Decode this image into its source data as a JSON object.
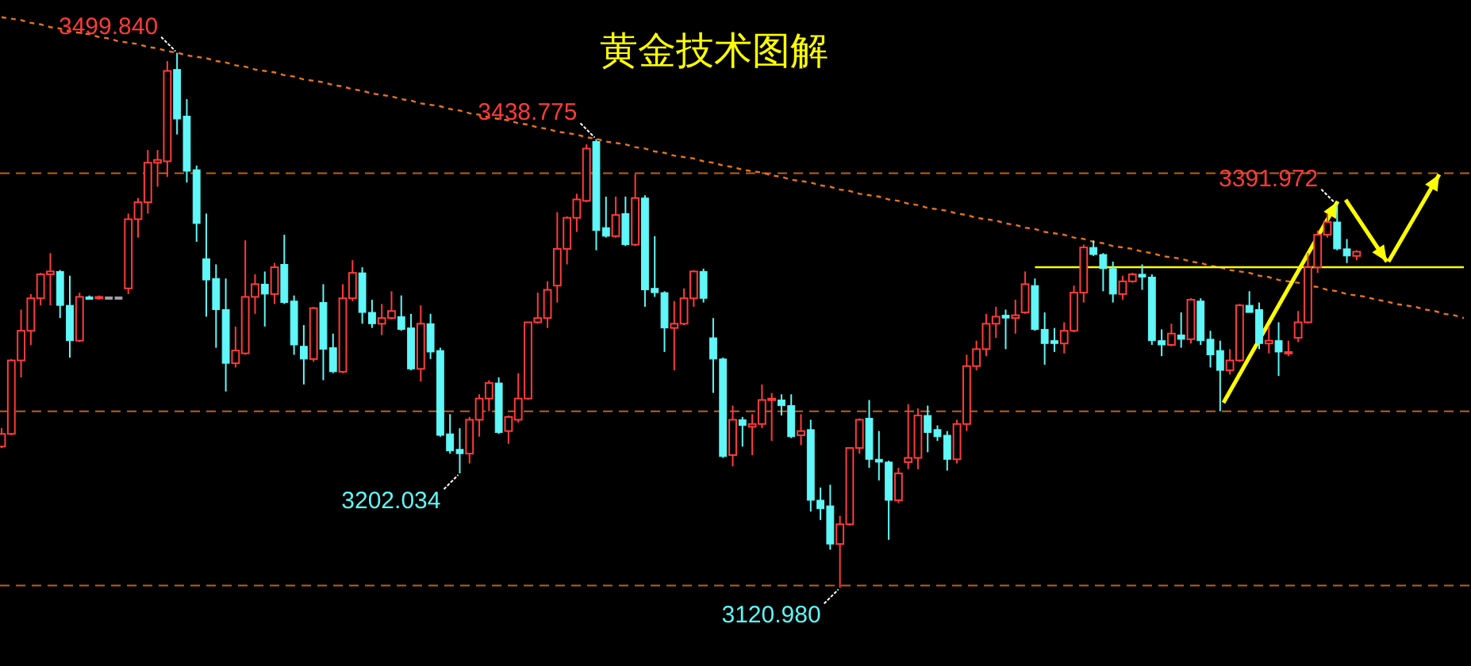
{
  "chart_data": {
    "type": "candlestick",
    "title": "黄金技术图解",
    "categories": [
      null,
      null,
      null,
      null,
      null,
      null,
      null,
      null,
      null,
      null,
      null,
      null,
      null,
      null,
      null,
      null,
      null,
      null,
      null,
      null,
      null,
      null,
      null,
      null,
      null,
      null,
      null,
      null,
      null,
      null,
      null,
      null,
      null,
      null,
      null,
      null,
      null,
      null,
      null,
      null,
      null,
      null,
      null,
      null,
      null,
      null,
      null,
      null,
      null,
      null,
      null,
      null,
      null,
      null,
      null,
      null,
      null,
      null,
      null,
      null,
      null,
      null,
      null,
      null,
      null,
      null,
      null,
      null,
      null,
      null,
      null,
      null,
      null,
      null,
      null,
      null,
      null,
      null,
      null,
      null,
      null,
      null,
      null,
      null,
      null,
      null,
      null,
      null,
      null,
      null,
      null,
      null,
      null,
      null,
      null,
      null,
      null,
      null,
      null,
      null,
      null,
      null,
      null,
      null,
      null,
      null,
      null,
      null,
      null,
      null,
      null,
      null,
      null,
      null,
      null,
      null,
      null,
      null,
      null,
      null,
      null,
      null,
      null,
      null,
      null,
      null,
      null,
      null,
      null,
      null,
      null,
      null,
      null,
      null,
      null,
      null,
      null,
      null,
      null,
      null,
      null,
      null,
      null,
      null,
      null,
      null,
      null,
      null,
      null,
      null,
      null
    ],
    "ohlc": [
      [
        3221,
        3234,
        3220,
        3230
      ],
      [
        3230,
        3283,
        3229,
        3282
      ],
      [
        3282,
        3318,
        3270,
        3303
      ],
      [
        3303,
        3329,
        3293,
        3326
      ],
      [
        3326,
        3344,
        3321,
        3343
      ],
      [
        3343,
        3358,
        3321,
        3345
      ],
      [
        3345,
        3346,
        3312,
        3321
      ],
      [
        3321,
        3342,
        3284,
        3296
      ],
      [
        3296,
        3330,
        3295,
        3327
      ],
      [
        3327,
        3328,
        3325,
        3326
      ],
      [
        3326,
        3328,
        3325,
        3327
      ],
      [
        3327,
        3327,
        3327,
        3327
      ],
      [
        3327,
        3327,
        3327,
        3327
      ],
      [
        3333,
        3386,
        3329,
        3382
      ],
      [
        3382,
        3397,
        3369,
        3394
      ],
      [
        3394,
        3431,
        3386,
        3422
      ],
      [
        3422,
        3431,
        3405,
        3424
      ],
      [
        3423,
        3494,
        3412,
        3487
      ],
      [
        3488,
        3499.84,
        3442,
        3453
      ],
      [
        3455,
        3467,
        3408,
        3416
      ],
      [
        3417,
        3420,
        3366,
        3379
      ],
      [
        3354,
        3386,
        3313,
        3339
      ],
      [
        3340,
        3350,
        3291,
        3318
      ],
      [
        3318,
        3340,
        3260,
        3280
      ],
      [
        3280,
        3306,
        3277,
        3289
      ],
      [
        3287,
        3367,
        3286,
        3327
      ],
      [
        3327,
        3343,
        3315,
        3336
      ],
      [
        3336,
        3345,
        3306,
        3329
      ],
      [
        3329,
        3351,
        3322,
        3348
      ],
      [
        3350,
        3371,
        3322,
        3323
      ],
      [
        3324,
        3328,
        3286,
        3293
      ],
      [
        3292,
        3307,
        3265,
        3283
      ],
      [
        3283,
        3320,
        3281,
        3319
      ],
      [
        3323,
        3336,
        3268,
        3290
      ],
      [
        3291,
        3301,
        3273,
        3274
      ],
      [
        3274,
        3336,
        3273,
        3326
      ],
      [
        3326,
        3353,
        3324,
        3344
      ],
      [
        3344,
        3348,
        3308,
        3316
      ],
      [
        3316,
        3325,
        3305,
        3308
      ],
      [
        3308,
        3322,
        3300,
        3312
      ],
      [
        3312,
        3331,
        3311,
        3317
      ],
      [
        3313,
        3328,
        3303,
        3304
      ],
      [
        3305,
        3315,
        3275,
        3276
      ],
      [
        3276,
        3321,
        3267,
        3308
      ],
      [
        3308,
        3315,
        3283,
        3288
      ],
      [
        3289,
        3291,
        3228,
        3229
      ],
      [
        3230,
        3244,
        3216,
        3218
      ],
      [
        3219,
        3234,
        3202.034,
        3216
      ],
      [
        3216,
        3242,
        3209,
        3240
      ],
      [
        3240,
        3258,
        3228,
        3255
      ],
      [
        3255,
        3268,
        3246,
        3266
      ],
      [
        3266,
        3270,
        3230,
        3231
      ],
      [
        3232,
        3243,
        3223,
        3242
      ],
      [
        3240,
        3273,
        3238,
        3255
      ],
      [
        3255,
        3309,
        3254,
        3309
      ],
      [
        3309,
        3330,
        3308,
        3312
      ],
      [
        3312,
        3338,
        3305,
        3332
      ],
      [
        3335,
        3387,
        3323,
        3361
      ],
      [
        3361,
        3384,
        3350,
        3383
      ],
      [
        3383,
        3400,
        3373,
        3396
      ],
      [
        3395,
        3435,
        3394,
        3432
      ],
      [
        3437,
        3438.775,
        3360,
        3374
      ],
      [
        3376,
        3398,
        3369,
        3370
      ],
      [
        3370,
        3398,
        3369,
        3385
      ],
      [
        3386,
        3398,
        3363,
        3364
      ],
      [
        3364,
        3414,
        3363,
        3397
      ],
      [
        3397,
        3399,
        3320,
        3332
      ],
      [
        3333,
        3370,
        3327,
        3330
      ],
      [
        3330,
        3331,
        3288,
        3305
      ],
      [
        3305,
        3324,
        3275,
        3308
      ],
      [
        3308,
        3333,
        3307,
        3326
      ],
      [
        3326,
        3346,
        3320,
        3345
      ],
      [
        3345,
        3347,
        3323,
        3326
      ],
      [
        3298,
        3312,
        3259,
        3283
      ],
      [
        3283,
        3284,
        3213,
        3214
      ],
      [
        3215,
        3250,
        3207,
        3240
      ],
      [
        3240,
        3242,
        3221,
        3236
      ],
      [
        3235,
        3244,
        3215,
        3237
      ],
      [
        3237,
        3265,
        3234,
        3254
      ],
      [
        3254,
        3259,
        3225,
        3255
      ],
      [
        3254,
        3258,
        3243,
        3250
      ],
      [
        3250,
        3258,
        3227,
        3228
      ],
      [
        3229,
        3244,
        3222,
        3232
      ],
      [
        3233,
        3240,
        3175,
        3183
      ],
      [
        3183,
        3192,
        3169,
        3177
      ],
      [
        3179,
        3194,
        3148,
        3152
      ],
      [
        3152,
        3172,
        3120.98,
        3166
      ],
      [
        3166,
        3220,
        3165,
        3220
      ],
      [
        3220,
        3241,
        3216,
        3240
      ],
      [
        3241,
        3254,
        3206,
        3212
      ],
      [
        3212,
        3232,
        3197,
        3210
      ],
      [
        3210,
        3211,
        3155,
        3183
      ],
      [
        3183,
        3206,
        3181,
        3202
      ],
      [
        3210,
        3251,
        3205,
        3213
      ],
      [
        3213,
        3248,
        3205,
        3243
      ],
      [
        3243,
        3250,
        3217,
        3231
      ],
      [
        3233,
        3236,
        3225,
        3228
      ],
      [
        3229,
        3232,
        3204,
        3212
      ],
      [
        3212,
        3240,
        3209,
        3237
      ],
      [
        3237,
        3286,
        3232,
        3278
      ],
      [
        3278,
        3296,
        3275,
        3290
      ],
      [
        3290,
        3315,
        3285,
        3308
      ],
      [
        3308,
        3320,
        3298,
        3313
      ],
      [
        3314,
        3318,
        3290,
        3312
      ],
      [
        3312,
        3325,
        3301,
        3314
      ],
      [
        3316,
        3345,
        3315,
        3336
      ],
      [
        3335,
        3340,
        3303,
        3304
      ],
      [
        3304,
        3316,
        3279,
        3294
      ],
      [
        3296,
        3305,
        3288,
        3294
      ],
      [
        3294,
        3309,
        3287,
        3303
      ],
      [
        3303,
        3335,
        3302,
        3330
      ],
      [
        3330,
        3364,
        3323,
        3362
      ],
      [
        3362,
        3367,
        3356,
        3357
      ],
      [
        3357,
        3358,
        3331,
        3347
      ],
      [
        3347,
        3352,
        3323,
        3329
      ],
      [
        3329,
        3342,
        3325,
        3338
      ],
      [
        3338,
        3344,
        3337,
        3343
      ],
      [
        3343,
        3350,
        3332,
        3341
      ],
      [
        3341,
        3343,
        3293,
        3296
      ],
      [
        3296,
        3304,
        3285,
        3293
      ],
      [
        3293,
        3308,
        3292,
        3301
      ],
      [
        3300,
        3316,
        3291,
        3297
      ],
      [
        3297,
        3326,
        3294,
        3325
      ],
      [
        3324,
        3326,
        3293,
        3296
      ],
      [
        3297,
        3303,
        3277,
        3286
      ],
      [
        3289,
        3296,
        3246,
        3275
      ],
      [
        3275,
        3290,
        3272,
        3282
      ],
      [
        3282,
        3322,
        3281,
        3321
      ],
      [
        3321,
        3331,
        3316,
        3316
      ],
      [
        3318,
        3323,
        3290,
        3294
      ],
      [
        3294,
        3306,
        3287,
        3296
      ],
      [
        3296,
        3309,
        3271,
        3288
      ],
      [
        3287,
        3296,
        3285,
        3288
      ],
      [
        3298,
        3317,
        3295,
        3309
      ],
      [
        3309,
        3358,
        3308,
        3348
      ],
      [
        3348,
        3374,
        3344,
        3371
      ],
      [
        3371,
        3386,
        3369,
        3380
      ],
      [
        3380,
        3391.972,
        3360,
        3361
      ],
      [
        3361,
        3368,
        3351,
        3356
      ],
      [
        3356,
        3360,
        3353,
        3359
      ],
      null,
      null,
      null,
      null,
      null,
      null,
      null,
      null,
      null,
      null,
      null
    ],
    "series": [
      {
        "type": "line",
        "color": "#e8731a",
        "line_style": "dotted",
        "values": [
          3525,
          3524,
          3523,
          3521,
          3520,
          3518,
          3517,
          3515,
          3514,
          3513,
          3511,
          3510,
          3508,
          3507,
          3506,
          3504,
          3503,
          3501,
          3500,
          3498,
          3497,
          3496,
          3494,
          3493,
          3491,
          3490,
          3488,
          3487,
          3486,
          3484,
          3483,
          3481,
          3480,
          3479,
          3477,
          3476,
          3474,
          3473,
          3471,
          3470,
          3469,
          3467,
          3466,
          3464,
          3463,
          3462,
          3460,
          3459,
          3457,
          3456,
          3454,
          3453,
          3452,
          3450,
          3449,
          3447,
          3446,
          3444,
          3443,
          3442,
          3440,
          3439,
          3437,
          3436,
          3435,
          3433,
          3432,
          3430,
          3429,
          3427,
          3426,
          3425,
          3423,
          3422,
          3420,
          3419,
          3417,
          3416,
          3415,
          3413,
          3412,
          3410,
          3409,
          3408,
          3406,
          3405,
          3403,
          3402,
          3400,
          3399,
          3398,
          3396,
          3395,
          3393,
          3392,
          3390,
          3389,
          3388,
          3386,
          3385,
          3383,
          3382,
          3381,
          3379,
          3378,
          3376,
          3375,
          3373,
          3372,
          3371,
          3369,
          3368,
          3366,
          3365,
          3363,
          3362,
          3361,
          3359,
          3358,
          3356,
          3355,
          3354,
          3352,
          3351,
          3349,
          3348,
          3346,
          3345,
          3344,
          3342,
          3341,
          3339,
          3338,
          3337,
          3335,
          3334,
          3332,
          3331,
          3329,
          3328,
          3327,
          3325,
          3324,
          3322,
          3321,
          3320,
          3318,
          3317,
          3315,
          3314,
          3312
        ]
      },
      {
        "type": "line",
        "color": "#ffff00",
        "line_style": "solid",
        "values": [
          null,
          null,
          null,
          null,
          null,
          null,
          null,
          null,
          null,
          null,
          null,
          null,
          null,
          null,
          null,
          null,
          null,
          null,
          null,
          null,
          null,
          null,
          null,
          null,
          null,
          null,
          null,
          null,
          null,
          null,
          null,
          null,
          null,
          null,
          null,
          null,
          null,
          null,
          null,
          null,
          null,
          null,
          null,
          null,
          null,
          null,
          null,
          null,
          null,
          null,
          null,
          null,
          null,
          null,
          null,
          null,
          null,
          null,
          null,
          null,
          null,
          null,
          null,
          null,
          null,
          null,
          null,
          null,
          null,
          null,
          null,
          null,
          null,
          null,
          null,
          null,
          null,
          null,
          null,
          null,
          null,
          null,
          null,
          null,
          null,
          null,
          null,
          null,
          null,
          null,
          null,
          null,
          null,
          null,
          null,
          null,
          null,
          null,
          null,
          null,
          null,
          null,
          null,
          null,
          null,
          null,
          3348,
          3348,
          3348,
          3348,
          3348,
          3348,
          3348,
          3348,
          3348,
          3348,
          3348,
          3348,
          3348,
          3348,
          3348,
          3348,
          3348,
          3348,
          3348,
          3348,
          3348,
          3348,
          3348,
          3348,
          3348,
          3348,
          3348,
          3348,
          3348,
          3348,
          3348,
          3348,
          3348,
          3348,
          3348,
          3348,
          3348,
          3348,
          3348,
          3348,
          3348,
          3348,
          3348,
          3348,
          3348
        ]
      }
    ],
    "ref_lines": [
      {
        "axis": "y",
        "value": 3414.5,
        "color": "#c0600f",
        "line_style": "dashed"
      },
      {
        "axis": "y",
        "value": 3246,
        "color": "#c0600f",
        "line_style": "dashed"
      },
      {
        "axis": "y",
        "value": 3122.6,
        "color": "#c0600f",
        "line_style": "dashed"
      }
    ],
    "annotations": [
      "3499.840",
      "3438.775",
      "3391.972",
      "3202.034",
      "3120.980"
    ]
  }
}
